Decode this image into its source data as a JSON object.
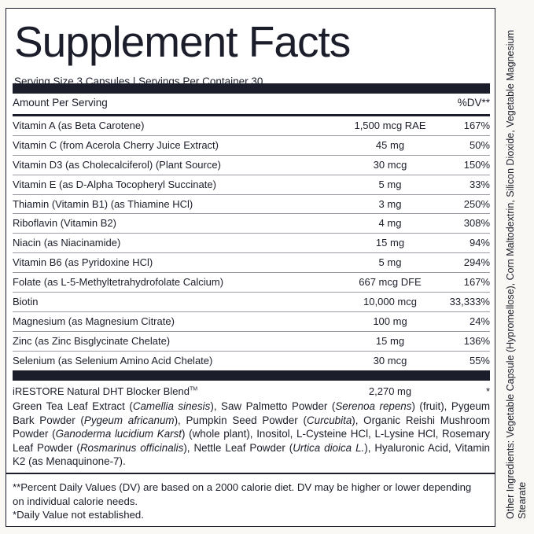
{
  "title": "Supplement Facts",
  "serving": "Serving Size 3 Capsules | Servings Per Container 30",
  "header": {
    "amount_per_serving": "Amount Per Serving",
    "dv": "%DV**"
  },
  "nutrients": [
    {
      "name": "Vitamin A (as Beta Carotene)",
      "amount": "1,500 mcg RAE",
      "dv": "167%"
    },
    {
      "name": "Vitamin C (from Acerola Cherry Juice Extract)",
      "amount": "45 mg",
      "dv": "50%"
    },
    {
      "name": "Vitamin D3 (as Cholecalciferol) (Plant Source)",
      "amount": "30 mcg",
      "dv": "150%"
    },
    {
      "name": "Vitamin E (as D-Alpha Tocopheryl Succinate)",
      "amount": "5 mg",
      "dv": "33%"
    },
    {
      "name": "Thiamin (Vitamin B1) (as Thiamine HCl)",
      "amount": "3 mg",
      "dv": "250%"
    },
    {
      "name": "Riboflavin (Vitamin B2)",
      "amount": "4 mg",
      "dv": "308%"
    },
    {
      "name": "Niacin (as Niacinamide)",
      "amount": "15 mg",
      "dv": "94%"
    },
    {
      "name": "Vitamin B6 (as Pyridoxine HCl)",
      "amount": "5 mg",
      "dv": "294%"
    },
    {
      "name": "Folate (as L-5-Methyltetrahydrofolate Calcium)",
      "amount": "667 mcg DFE",
      "dv": "167%"
    },
    {
      "name": "Biotin",
      "amount": "10,000 mcg",
      "dv": "33,333%"
    },
    {
      "name": "Magnesium (as Magnesium Citrate)",
      "amount": "100 mg",
      "dv": "24%"
    },
    {
      "name": "Zinc (as Zinc Bisglycinate Chelate)",
      "amount": "15 mg",
      "dv": "136%"
    },
    {
      "name": "Selenium (as Selenium Amino Acid Chelate)",
      "amount": "30 mcg",
      "dv": "55%"
    }
  ],
  "blend": {
    "name": "iRESTORE Natural DHT Blocker Blend",
    "tm": "TM",
    "amount": "2,270 mg",
    "dv": "*",
    "ingredients": [
      {
        "t": "Green Tea Leaf Extract (",
        "i": false
      },
      {
        "t": "Camellia sinesis",
        "i": true
      },
      {
        "t": "), Saw Palmetto Powder (",
        "i": false
      },
      {
        "t": "Serenoa repens",
        "i": true
      },
      {
        "t": ") (fruit), Pygeum Bark Powder (",
        "i": false
      },
      {
        "t": "Pygeum africanum",
        "i": true
      },
      {
        "t": "), Pumpkin Seed Powder (",
        "i": false
      },
      {
        "t": "Curcubita",
        "i": true
      },
      {
        "t": "), Organic Reishi Mushroom Powder (",
        "i": false
      },
      {
        "t": "Ganoderma lucidium Karst",
        "i": true
      },
      {
        "t": ") (whole plant), Inositol, L-Cysteine HCl, L-Lysine HCl, Rosemary Leaf Powder (",
        "i": false
      },
      {
        "t": "Rosmarinus officinalis",
        "i": true
      },
      {
        "t": "), Nettle Leaf Powder (",
        "i": false
      },
      {
        "t": "Urtica dioica L.",
        "i": true
      },
      {
        "t": "), Hyaluronic Acid, Vitamin K2 (as Menaquinone-7).",
        "i": false
      }
    ]
  },
  "footnotes": [
    "**Percent Daily Values (DV) are based on a 2000 calorie diet. DV may be higher or lower depending on individual calorie needs.",
    "*Daily Value not established."
  ],
  "other_ingredients": "Other Ingredients: Vegetable Capsule (Hypromellose), Corn Maltodextrin, Silicon Dioxide, Vegetable Magnesium Stearate"
}
